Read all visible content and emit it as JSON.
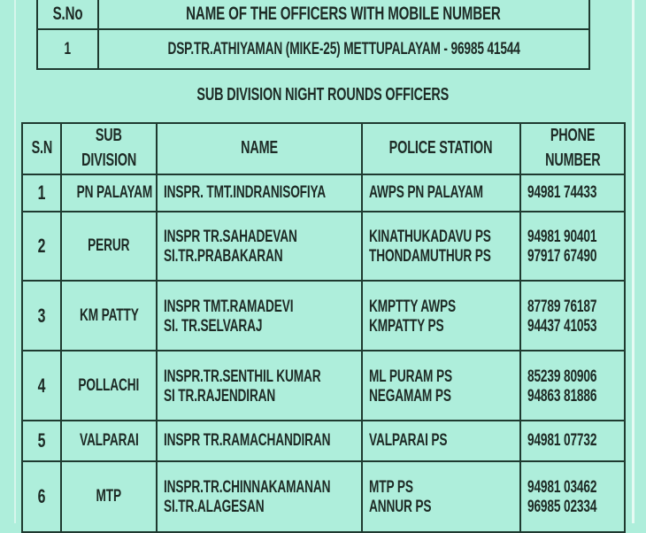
{
  "top_table": {
    "headers": [
      "S.No",
      "NAME OF THE OFFICERS WITH MOBILE NUMBER"
    ],
    "rows": [
      {
        "sno": "1",
        "text": "DSP.TR.ATHIYAMAN  (MIKE-25) METTUPALAYAM - 96985 41544"
      }
    ]
  },
  "section_title": "SUB DIVISION NIGHT ROUNDS OFFICERS",
  "main_table": {
    "headers": {
      "sn": "S.N",
      "sub_division_1": "SUB",
      "sub_division_2": "DIVISION",
      "name": "NAME",
      "police_station": "POLICE STATION",
      "phone_1": "PHONE",
      "phone_2": "NUMBER"
    },
    "rows": [
      {
        "sn": "1",
        "sub": "PN PALAYAM",
        "officers": [
          {
            "name": "INSPR. TMT.INDRANISOFIYA",
            "station": "AWPS PN PALAYAM",
            "phone": "94981 74433"
          }
        ]
      },
      {
        "sn": "2",
        "sub": "PERUR",
        "officers": [
          {
            "name": "INSPR TR.SAHADEVAN",
            "station": "KINATHUKADAVU PS",
            "phone": "94981 90401"
          },
          {
            "name": "SI.TR.PRABAKARAN",
            "station": "THONDAMUTHUR PS",
            "phone": "97917 67490"
          }
        ]
      },
      {
        "sn": "3",
        "sub": "KM PATTY",
        "officers": [
          {
            "name": "INSPR TMT.RAMADEVI",
            "station": "KMPTTY AWPS",
            "phone": "87789 76187"
          },
          {
            "name": "SI. TR.SELVARAJ",
            "station": "KMPATTY PS",
            "phone": "94437 41053"
          }
        ]
      },
      {
        "sn": "4",
        "sub": "POLLACHI",
        "officers": [
          {
            "name": "INSPR.TR.SENTHIL KUMAR",
            "station": "ML PURAM PS",
            "phone": "85239 80906"
          },
          {
            "name": "SI TR.RAJENDIRAN",
            "station": "NEGAMAM PS",
            "phone": "94863 81886"
          }
        ]
      },
      {
        "sn": "5",
        "sub": "VALPARAI",
        "officers": [
          {
            "name": "INSPR TR.RAMACHANDIRAN",
            "station": "VALPARAI PS",
            "phone": "94981 07732"
          }
        ]
      },
      {
        "sn": "6",
        "sub": "MTP",
        "officers": [
          {
            "name": "INSPR.TR.CHINNAKAMANAN",
            "station": "MTP PS",
            "phone": "94981 03462"
          },
          {
            "name": "SI.TR.ALAGESAN",
            "station": "ANNUR PS",
            "phone": "96985 02334"
          }
        ]
      }
    ]
  }
}
